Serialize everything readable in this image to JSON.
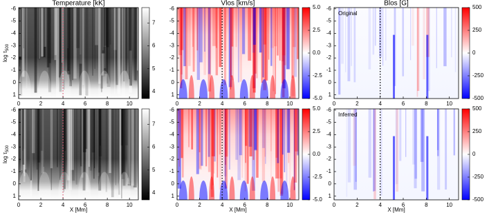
{
  "chart_data": [
    {
      "type": "heatmap",
      "title": "Temperature [kK]",
      "ylabel": {
        "text": "log τ",
        "subscript": "500"
      },
      "xlim": [
        0,
        10.8
      ],
      "ylim": [
        -6.1,
        1.3
      ],
      "xticks": [
        0,
        2,
        4,
        6,
        8,
        10
      ],
      "yticks": [
        -6,
        -5,
        -4,
        -3,
        -2,
        -1,
        0,
        1
      ],
      "clim": [
        3.7,
        7.67
      ],
      "cticks": [
        4,
        5,
        6,
        7
      ],
      "colormap": [
        "#000000",
        "#ffffff"
      ],
      "marker_x": 4,
      "marker_color": "#e0607a"
    },
    {
      "type": "heatmap",
      "title": "Vlos [km/s]",
      "xlim": [
        0,
        10.8
      ],
      "ylim": [
        -6.1,
        1.3
      ],
      "xticks": [
        0,
        2,
        4,
        6,
        8,
        10
      ],
      "yticks": [
        -6,
        -5,
        -4,
        -3,
        -2,
        -1,
        0,
        1
      ],
      "clim": [
        -5,
        5
      ],
      "cticks": [
        {
          "value": -5,
          "label": "-5.0"
        },
        {
          "value": -2.5,
          "label": "-2.5"
        },
        {
          "value": 0,
          "label": "0.0"
        },
        {
          "value": 2.5,
          "label": "2.5"
        },
        {
          "value": 5,
          "label": "5.0"
        }
      ],
      "colormap": [
        "#0000ff",
        "#ffffff",
        "#ff0000"
      ],
      "marker_x": 4,
      "marker_color": "#000000"
    },
    {
      "type": "heatmap",
      "title": "Blos [G]",
      "annotation": "Original",
      "xlim": [
        0,
        10.8
      ],
      "ylim": [
        -6.1,
        1.3
      ],
      "xticks": [
        0,
        2,
        4,
        6,
        8,
        10
      ],
      "yticks": [
        -6,
        -5,
        -4,
        -3,
        -2,
        -1,
        0,
        1
      ],
      "clim": [
        -500,
        500
      ],
      "cticks": [
        -500,
        -250,
        0,
        250,
        500
      ],
      "colormap": [
        "#0000ff",
        "#ffffff",
        "#ff0000"
      ],
      "marker_x": 4,
      "marker_color": "#000000"
    },
    {
      "type": "heatmap",
      "xlabel": "X [Mm]",
      "ylabel": {
        "text": "log τ",
        "subscript": "500"
      },
      "xlim": [
        0,
        10.8
      ],
      "ylim": [
        -6.1,
        1.3
      ],
      "xticks": [
        0,
        2,
        4,
        6,
        8,
        10
      ],
      "yticks": [
        -6,
        -5,
        -4,
        -3,
        -2,
        -1,
        0,
        1
      ],
      "clim": [
        3.7,
        7.67
      ],
      "cticks": [
        4,
        5,
        6,
        7
      ],
      "colormap": [
        "#000000",
        "#ffffff"
      ],
      "marker_x": 4,
      "marker_color": "#e0607a"
    },
    {
      "type": "heatmap",
      "xlabel": "X [Mm]",
      "xlim": [
        0,
        10.8
      ],
      "ylim": [
        -6.1,
        1.3
      ],
      "xticks": [
        0,
        2,
        4,
        6,
        8,
        10
      ],
      "yticks": [
        -6,
        -5,
        -4,
        -3,
        -2,
        -1,
        0,
        1
      ],
      "clim": [
        -5,
        5
      ],
      "cticks": [
        {
          "value": -5,
          "label": "-5.0"
        },
        {
          "value": -2.5,
          "label": "-2.5"
        },
        {
          "value": 0,
          "label": "0.0"
        },
        {
          "value": 2.5,
          "label": "2.5"
        },
        {
          "value": 5,
          "label": "5.0"
        }
      ],
      "colormap": [
        "#0000ff",
        "#ffffff",
        "#ff0000"
      ],
      "marker_x": 4,
      "marker_color": "#000000"
    },
    {
      "type": "heatmap",
      "xlabel": "X [Mm]",
      "annotation": "Inferred",
      "xlim": [
        0,
        10.8
      ],
      "ylim": [
        -6.1,
        1.3
      ],
      "xticks": [
        0,
        2,
        4,
        6,
        8,
        10
      ],
      "yticks": [
        -6,
        -5,
        -4,
        -3,
        -2,
        -1,
        0,
        1
      ],
      "clim": [
        -500,
        500
      ],
      "cticks": [
        -500,
        -250,
        0,
        250,
        500
      ],
      "colormap": [
        "#0000ff",
        "#ffffff",
        "#ff0000"
      ],
      "marker_x": 4,
      "marker_color": "#000000"
    }
  ]
}
